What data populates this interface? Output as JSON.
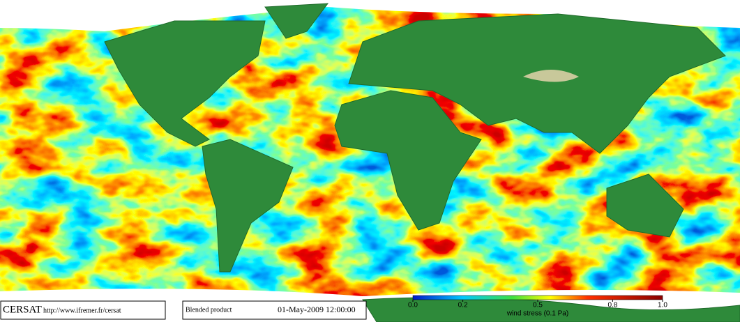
{
  "header": {
    "logo": "CERSAT",
    "url": "http://www.ifremer.fr/cersat",
    "product": "Blended product",
    "date": "01-May-2009 12:00:00"
  },
  "colorbar": {
    "label": "wind stress (0.1 Pa)",
    "range": [
      0,
      1
    ],
    "ticks": [
      {
        "value": 0,
        "label": "0.0"
      },
      0.2,
      0.5,
      0.8,
      {
        "value": 1,
        "label": "1.0"
      }
    ]
  }
}
